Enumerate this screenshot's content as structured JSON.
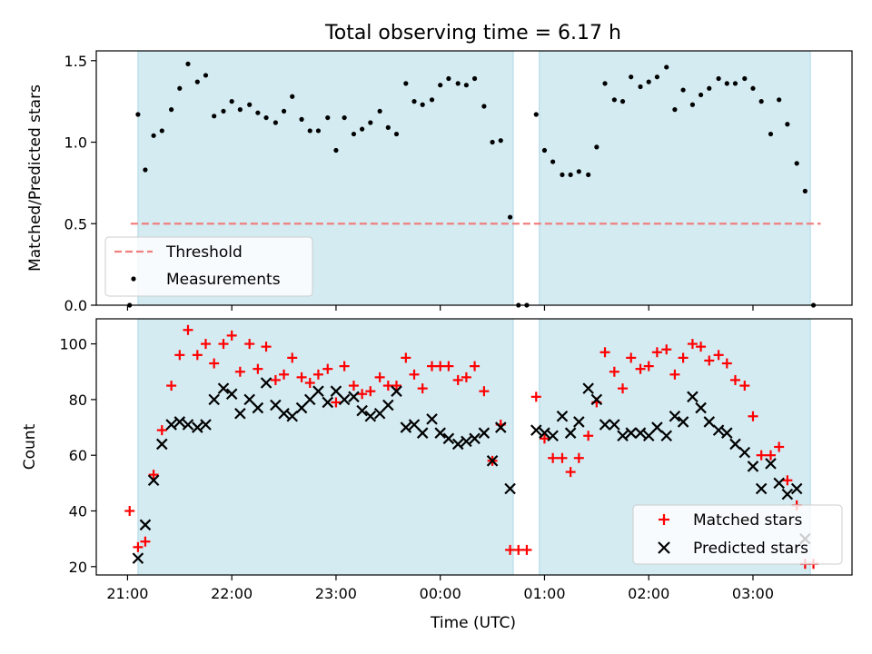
{
  "title": "Total observing time = 6.17 h",
  "chart_data": [
    {
      "type": "scatter",
      "ylabel": "Matched/Predicted stars",
      "xlabel": "",
      "x_unit": "hours since 21:00 UTC",
      "xlim": [
        -0.3,
        6.95
      ],
      "ylim": [
        0,
        1.56
      ],
      "yticks": [
        0.0,
        0.5,
        1.0,
        1.5
      ],
      "ytick_labels": [
        "0.0",
        "0.5",
        "1.0",
        "1.5"
      ],
      "x_tick_labels_shown": false,
      "shaded_intervals": [
        [
          0.1,
          3.7
        ],
        [
          3.95,
          6.55
        ]
      ],
      "threshold": {
        "name": "Threshold",
        "value": 0.5,
        "x_range": [
          0.03,
          6.65
        ],
        "color": "#f08080"
      },
      "legend": {
        "placement": "lower-left",
        "entries": [
          "Threshold",
          "Measurements"
        ]
      },
      "series": [
        {
          "name": "Measurements",
          "color": "#000000",
          "x": [
            0.02,
            0.1,
            0.17,
            0.25,
            0.33,
            0.42,
            0.5,
            0.58,
            0.67,
            0.75,
            0.83,
            0.92,
            1.0,
            1.08,
            1.17,
            1.25,
            1.33,
            1.42,
            1.5,
            1.58,
            1.67,
            1.75,
            1.83,
            1.92,
            2.0,
            2.08,
            2.17,
            2.25,
            2.33,
            2.42,
            2.5,
            2.58,
            2.67,
            2.75,
            2.83,
            2.92,
            3.0,
            3.08,
            3.17,
            3.25,
            3.33,
            3.42,
            3.5,
            3.58,
            3.67,
            3.75,
            3.83,
            3.92,
            4.0,
            4.08,
            4.17,
            4.25,
            4.33,
            4.42,
            4.5,
            4.58,
            4.67,
            4.75,
            4.83,
            4.92,
            5.0,
            5.08,
            5.17,
            5.25,
            5.33,
            5.42,
            5.5,
            5.58,
            5.67,
            5.75,
            5.83,
            5.92,
            6.0,
            6.08,
            6.17,
            6.25,
            6.33,
            6.42,
            6.5,
            6.58
          ],
          "y": [
            0.0,
            1.17,
            0.83,
            1.04,
            1.07,
            1.2,
            1.33,
            1.48,
            1.37,
            1.41,
            1.16,
            1.19,
            1.25,
            1.2,
            1.23,
            1.18,
            1.15,
            1.12,
            1.19,
            1.28,
            1.14,
            1.07,
            1.07,
            1.15,
            0.95,
            1.15,
            1.05,
            1.08,
            1.12,
            1.19,
            1.09,
            1.05,
            1.36,
            1.25,
            1.23,
            1.26,
            1.35,
            1.39,
            1.36,
            1.35,
            1.39,
            1.22,
            1.0,
            1.01,
            0.54,
            0.0,
            0.0,
            1.17,
            0.95,
            0.88,
            0.8,
            0.8,
            0.82,
            0.8,
            0.97,
            1.36,
            1.26,
            1.25,
            1.4,
            1.34,
            1.37,
            1.4,
            1.46,
            1.2,
            1.32,
            1.23,
            1.29,
            1.33,
            1.39,
            1.36,
            1.36,
            1.39,
            1.33,
            1.25,
            1.05,
            1.26,
            1.11,
            0.87,
            0.7,
            0.0
          ]
        }
      ]
    },
    {
      "type": "scatter",
      "ylabel": "Count",
      "xlabel": "Time (UTC)",
      "x_unit": "hours since 21:00 UTC",
      "xlim": [
        -0.3,
        6.95
      ],
      "ylim": [
        17,
        109
      ],
      "yticks": [
        20,
        40,
        60,
        80,
        100
      ],
      "ytick_labels": [
        "20",
        "40",
        "60",
        "80",
        "100"
      ],
      "xticks": [
        0,
        1,
        2,
        3,
        4,
        5,
        6
      ],
      "xtick_labels": [
        "21:00",
        "22:00",
        "23:00",
        "00:00",
        "01:00",
        "02:00",
        "03:00"
      ],
      "shaded_intervals": [
        [
          0.1,
          3.7
        ],
        [
          3.95,
          6.55
        ]
      ],
      "legend": {
        "placement": "lower-right",
        "entries": [
          "Matched stars",
          "Predicted stars"
        ]
      },
      "series": [
        {
          "name": "Matched stars",
          "marker": "plus",
          "color": "#ff0000",
          "x": [
            0.02,
            0.1,
            0.17,
            0.25,
            0.33,
            0.42,
            0.5,
            0.58,
            0.67,
            0.75,
            0.83,
            0.92,
            1.0,
            1.08,
            1.17,
            1.25,
            1.33,
            1.42,
            1.5,
            1.58,
            1.67,
            1.75,
            1.83,
            1.92,
            2.0,
            2.08,
            2.17,
            2.25,
            2.33,
            2.42,
            2.5,
            2.58,
            2.67,
            2.75,
            2.83,
            2.92,
            3.0,
            3.08,
            3.17,
            3.25,
            3.33,
            3.42,
            3.5,
            3.58,
            3.67,
            3.75,
            3.83,
            3.92,
            4.0,
            4.08,
            4.17,
            4.25,
            4.33,
            4.42,
            4.5,
            4.58,
            4.67,
            4.75,
            4.83,
            4.92,
            5.0,
            5.08,
            5.17,
            5.25,
            5.33,
            5.42,
            5.5,
            5.58,
            5.67,
            5.75,
            5.83,
            5.92,
            6.0,
            6.08,
            6.17,
            6.25,
            6.33,
            6.42,
            6.5,
            6.58
          ],
          "y": [
            40,
            27,
            29,
            53,
            69,
            85,
            96,
            105,
            96,
            100,
            93,
            100,
            103,
            90,
            100,
            91,
            99,
            87,
            89,
            95,
            88,
            86,
            89,
            91,
            79,
            92,
            85,
            82,
            83,
            88,
            85,
            85,
            95,
            89,
            84,
            92,
            92,
            92,
            87,
            88,
            92,
            83,
            58,
            71,
            26,
            26,
            26,
            81,
            66,
            59,
            59,
            54,
            59,
            67,
            79,
            97,
            90,
            84,
            95,
            91,
            92,
            97,
            98,
            89,
            95,
            100,
            99,
            94,
            96,
            93,
            87,
            85,
            74,
            60,
            60,
            63,
            51,
            42,
            21,
            21
          ]
        },
        {
          "name": "Predicted stars",
          "marker": "x",
          "color": "#000000",
          "x": [
            0.1,
            0.17,
            0.25,
            0.33,
            0.42,
            0.5,
            0.58,
            0.67,
            0.75,
            0.83,
            0.92,
            1.0,
            1.08,
            1.17,
            1.25,
            1.33,
            1.42,
            1.5,
            1.58,
            1.67,
            1.75,
            1.83,
            1.92,
            2.0,
            2.08,
            2.17,
            2.25,
            2.33,
            2.42,
            2.5,
            2.58,
            2.67,
            2.75,
            2.83,
            2.92,
            3.0,
            3.08,
            3.17,
            3.25,
            3.33,
            3.42,
            3.5,
            3.58,
            3.67,
            3.92,
            4.0,
            4.08,
            4.17,
            4.25,
            4.33,
            4.42,
            4.5,
            4.58,
            4.67,
            4.75,
            4.83,
            4.92,
            5.0,
            5.08,
            5.17,
            5.25,
            5.33,
            5.42,
            5.5,
            5.58,
            5.67,
            5.75,
            5.83,
            5.92,
            6.0,
            6.08,
            6.17,
            6.25,
            6.33,
            6.42,
            6.5
          ],
          "y": [
            23,
            35,
            51,
            64,
            71,
            72,
            71,
            70,
            71,
            80,
            84,
            82,
            75,
            80,
            77,
            86,
            78,
            75,
            74,
            77,
            80,
            83,
            79,
            83,
            80,
            81,
            76,
            74,
            75,
            78,
            83,
            70,
            71,
            68,
            73,
            68,
            66,
            64,
            65,
            66,
            68,
            58,
            70,
            48,
            69,
            68,
            67,
            74,
            68,
            72,
            84,
            80,
            71,
            71,
            67,
            68,
            68,
            67,
            70,
            67,
            74,
            72,
            81,
            77,
            72,
            69,
            68,
            64,
            61,
            56,
            48,
            57,
            50,
            46,
            48,
            30
          ]
        }
      ]
    }
  ]
}
